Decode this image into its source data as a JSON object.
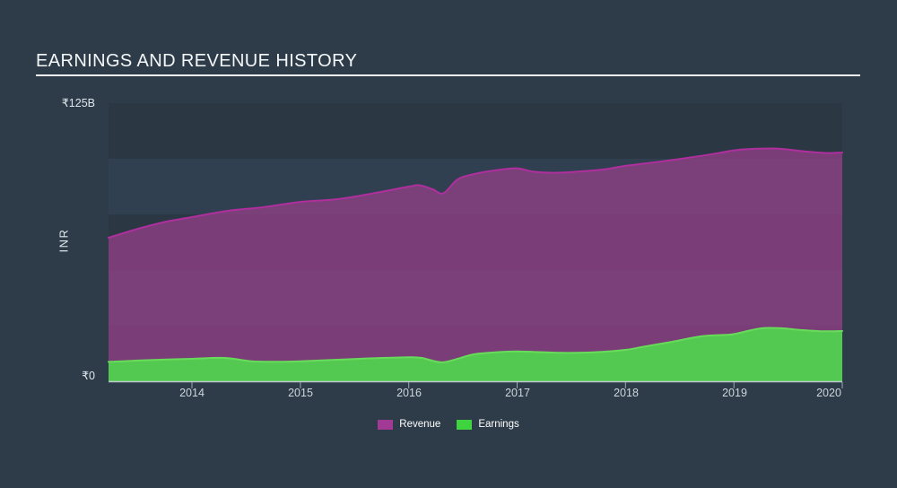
{
  "title": {
    "text": "EARNINGS AND REVENUE HISTORY"
  },
  "y_axis": {
    "top_label": "₹125B",
    "bottom_label": "₹0",
    "unit_label": "INR"
  },
  "x_axis": {
    "labels": [
      "2014",
      "2015",
      "2016",
      "2017",
      "2018",
      "2019",
      "2020"
    ]
  },
  "legend": {
    "items": [
      {
        "label": "Revenue",
        "color": "#a23a95"
      },
      {
        "label": "Earnings",
        "color": "#3fd33f"
      }
    ]
  },
  "colors": {
    "background": "#2e3c49",
    "band_dark": "#2b3844",
    "band_light": "#314050",
    "revenue_fill": "#8f3e85",
    "revenue_fill_opacity": 0.8,
    "revenue_line": "#ae2f9d",
    "earnings_fill": "#53cd50",
    "earnings_line": "#68dc5a",
    "axis_line": "#cdd7de",
    "tick": "#aebac3"
  },
  "chart_data": {
    "type": "area",
    "title": "EARNINGS AND REVENUE HISTORY",
    "xlabel": "",
    "ylabel": "INR",
    "currency": "₹",
    "y_unit": "B",
    "ylim": [
      0,
      125
    ],
    "x_range": [
      2013.23,
      2020
    ],
    "x_ticks": [
      2014,
      2015,
      2016,
      2017,
      2018,
      2019,
      2020
    ],
    "grid_bands": {
      "step": 25,
      "orientation": "horizontal",
      "alternating": true
    },
    "legend_position": "bottom-center",
    "series": [
      {
        "name": "Revenue",
        "points": [
          [
            2013.23,
            64.5
          ],
          [
            2013.5,
            68.5
          ],
          [
            2013.77,
            71.8
          ],
          [
            2014.0,
            73.8
          ],
          [
            2014.33,
            76.6
          ],
          [
            2014.65,
            78.2
          ],
          [
            2015.0,
            80.6
          ],
          [
            2015.35,
            81.9
          ],
          [
            2015.7,
            84.7
          ],
          [
            2016.0,
            87.5
          ],
          [
            2016.1,
            88.1
          ],
          [
            2016.22,
            86.3
          ],
          [
            2016.32,
            84.5
          ],
          [
            2016.45,
            90.7
          ],
          [
            2016.6,
            93.1
          ],
          [
            2016.8,
            94.8
          ],
          [
            2017.0,
            95.7
          ],
          [
            2017.15,
            94.2
          ],
          [
            2017.35,
            93.7
          ],
          [
            2017.55,
            94.2
          ],
          [
            2017.8,
            95.2
          ],
          [
            2018.0,
            96.8
          ],
          [
            2018.3,
            98.6
          ],
          [
            2018.6,
            100.6
          ],
          [
            2018.85,
            102.5
          ],
          [
            2019.0,
            103.8
          ],
          [
            2019.15,
            104.4
          ],
          [
            2019.4,
            104.6
          ],
          [
            2019.65,
            103.3
          ],
          [
            2019.85,
            102.6
          ],
          [
            2020.0,
            102.8
          ]
        ]
      },
      {
        "name": "Earnings",
        "points": [
          [
            2013.23,
            8.7
          ],
          [
            2013.5,
            9.3
          ],
          [
            2013.77,
            9.8
          ],
          [
            2014.0,
            10.1
          ],
          [
            2014.3,
            10.5
          ],
          [
            2014.55,
            9.0
          ],
          [
            2014.8,
            8.8
          ],
          [
            2015.0,
            9.0
          ],
          [
            2015.4,
            9.8
          ],
          [
            2015.7,
            10.4
          ],
          [
            2016.0,
            10.8
          ],
          [
            2016.12,
            10.5
          ],
          [
            2016.3,
            8.5
          ],
          [
            2016.45,
            10.1
          ],
          [
            2016.6,
            12.1
          ],
          [
            2016.8,
            13.0
          ],
          [
            2017.0,
            13.4
          ],
          [
            2017.4,
            12.8
          ],
          [
            2017.7,
            13.0
          ],
          [
            2018.0,
            14.1
          ],
          [
            2018.15,
            15.4
          ],
          [
            2018.4,
            17.5
          ],
          [
            2018.7,
            20.2
          ],
          [
            2018.9,
            20.8
          ],
          [
            2019.0,
            21.2
          ],
          [
            2019.25,
            23.8
          ],
          [
            2019.45,
            23.8
          ],
          [
            2019.6,
            23.1
          ],
          [
            2019.8,
            22.5
          ],
          [
            2020.0,
            22.6
          ]
        ]
      }
    ]
  }
}
